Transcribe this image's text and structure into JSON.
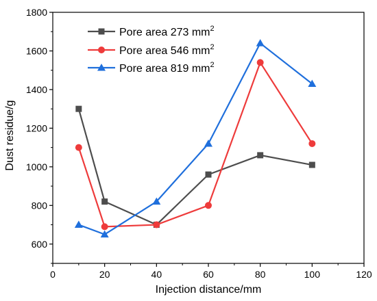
{
  "chart_data": {
    "type": "line",
    "xlabel": "Injection distance/mm",
    "ylabel": "Dust residue/g",
    "xlim": [
      0,
      120
    ],
    "ylim": [
      500,
      1800
    ],
    "xticks": [
      0,
      20,
      40,
      60,
      80,
      100,
      120
    ],
    "yticks": [
      600,
      800,
      1000,
      1200,
      1400,
      1600,
      1800
    ],
    "grid": false,
    "legend_position": "top-left",
    "x": [
      10,
      20,
      40,
      60,
      80,
      100
    ],
    "series": [
      {
        "name": "Pore area 273 mm",
        "name_sup": "2",
        "color": "#4d4d4d",
        "marker": "square",
        "values": [
          1300,
          820,
          700,
          960,
          1060,
          1010
        ]
      },
      {
        "name": "Pore area 546 mm",
        "name_sup": "2",
        "color": "#ee3b3b",
        "marker": "circle",
        "values": [
          1100,
          690,
          700,
          800,
          1540,
          1120
        ]
      },
      {
        "name": "Pore area 819 mm",
        "name_sup": "2",
        "color": "#1f6fdc",
        "marker": "triangle",
        "values": [
          700,
          650,
          820,
          1120,
          1640,
          1430
        ]
      }
    ]
  }
}
